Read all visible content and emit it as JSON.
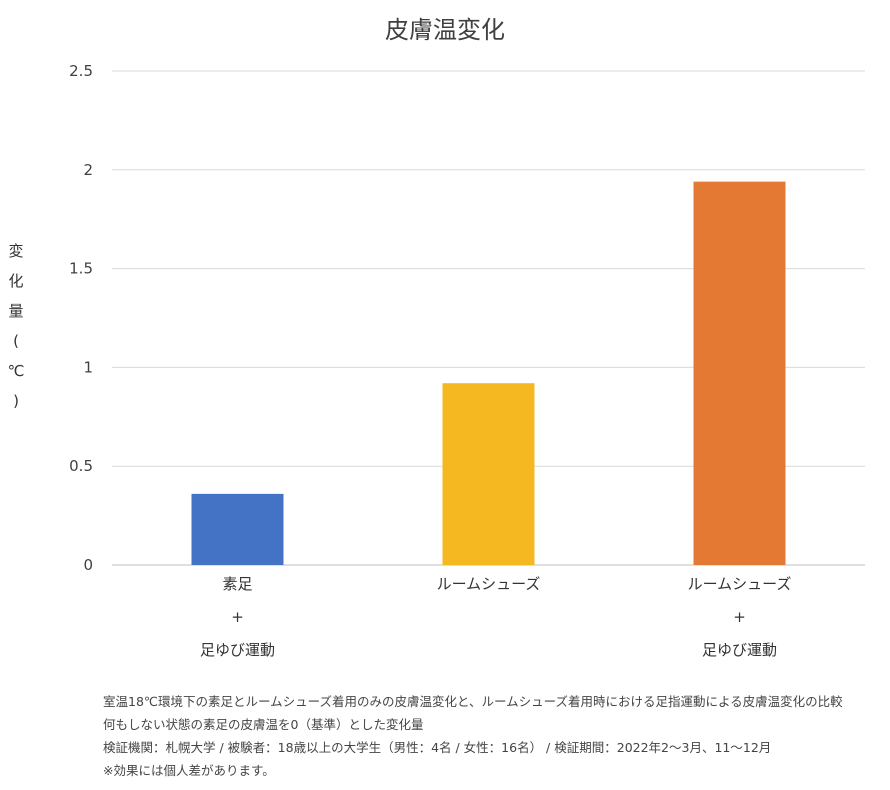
{
  "chart_data": {
    "type": "bar",
    "title": "皮膚温変化",
    "ylabel": "変化量(℃)",
    "xlabel": "",
    "ylim": [
      0,
      2.5
    ],
    "yticks": [
      "0",
      "0.5",
      "1",
      "1.5",
      "2",
      "2.5"
    ],
    "grid": true,
    "categories": [
      [
        "素足",
        "+",
        "足ゆび運動"
      ],
      [
        "ルームシューズ"
      ],
      [
        "ルームシューズ",
        "+",
        "足ゆび運動"
      ]
    ],
    "values": [
      0.36,
      0.92,
      1.94
    ],
    "colors": [
      "#4472C4",
      "#F5B820",
      "#E37933"
    ]
  },
  "footnotes": [
    "室温18℃環境下の素足とルームシューズ着用のみの皮膚温変化と、ルームシューズ着用時における足指運動による皮膚温変化の比較",
    "何もしない状態の素足の皮膚温を0（基準）とした変化量",
    "検証機関：札幌大学 / 被験者：18歳以上の大学生（男性：4名 / 女性：16名） / 検証期間：2022年2〜3月、11〜12月",
    "※効果には個人差があります。"
  ]
}
